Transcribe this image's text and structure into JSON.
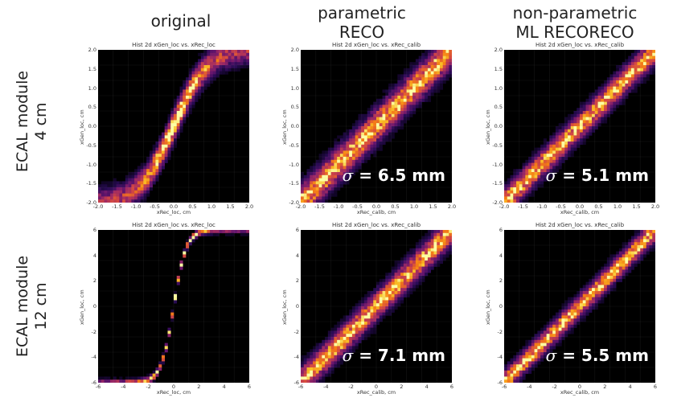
{
  "headers": {
    "col1": "original",
    "col2_line1": "parametric",
    "col2_line2": "RECO",
    "col3_line1": "non-parametric",
    "col3_line2": "ML RECORECO"
  },
  "rows": [
    {
      "line1": "ECAL module",
      "line2": "4 cm"
    },
    {
      "line1": "ECAL module",
      "line2": "12 cm"
    }
  ],
  "chart_data": [
    {
      "type": "heatmap",
      "title": "Hist 2d xGen_loc vs. xRec_loc",
      "xlabel": "xRec_loc, cm",
      "ylabel": "xGen_loc, cm",
      "xlim": [
        -2,
        2
      ],
      "ylim": [
        -2,
        2
      ],
      "xticks": [
        "-2.0",
        "-1.5",
        "-1.0",
        "-0.5",
        "0.0",
        "0.5",
        "1.0",
        "1.5",
        "2.0"
      ],
      "yticks": [
        "2.0",
        "1.5",
        "1.0",
        "0.5",
        "0.0",
        "-0.5",
        "-1.0",
        "-1.5",
        "-2.0"
      ],
      "shape": "s-curve",
      "sharpness": 2.2,
      "spread": 0.22,
      "annotation": ""
    },
    {
      "type": "heatmap",
      "title": "Hist 2d xGen_loc vs. xRec_calib",
      "xlabel": "xRec_calib, cm",
      "ylabel": "xGen_loc, cm",
      "xlim": [
        -2,
        2
      ],
      "ylim": [
        -2,
        2
      ],
      "xticks": [
        "-2.0",
        "-1.5",
        "-1.0",
        "-0.5",
        "0.0",
        "0.5",
        "1.0",
        "1.5",
        "2.0"
      ],
      "yticks": [
        "2.0",
        "1.5",
        "1.0",
        "0.5",
        "0.0",
        "-0.5",
        "-1.0",
        "-1.5",
        "-2.0"
      ],
      "shape": "diagonal",
      "sharpness": 1,
      "spread": 0.28,
      "annotation": "= 6.5 mm"
    },
    {
      "type": "heatmap",
      "title": "Hist 2d xGen_loc vs. xRec_calib",
      "xlabel": "xRec_calib, cm",
      "ylabel": "xGen_loc, cm",
      "xlim": [
        -2,
        2
      ],
      "ylim": [
        -2,
        2
      ],
      "xticks": [
        "-2.0",
        "-1.5",
        "-1.0",
        "-0.5",
        "0.0",
        "0.5",
        "1.0",
        "1.5",
        "2.0"
      ],
      "yticks": [
        "2.0",
        "1.5",
        "1.0",
        "0.5",
        "0.0",
        "-0.5",
        "-1.0",
        "-1.5",
        "-2.0"
      ],
      "shape": "diagonal",
      "sharpness": 1,
      "spread": 0.22,
      "annotation": "= 5.1 mm"
    },
    {
      "type": "heatmap",
      "title": "Hist 2d xGen_loc vs. xRec_loc",
      "xlabel": "xRec_loc, cm",
      "ylabel": "xGen_loc, cm",
      "xlim": [
        -6,
        6
      ],
      "ylim": [
        -6,
        6
      ],
      "xticks": [
        "-6",
        "-4",
        "-2",
        "0",
        "2",
        "4",
        "6"
      ],
      "yticks": [
        "6",
        "4",
        "2",
        "0",
        "-2",
        "-4",
        "-6"
      ],
      "shape": "s-curve",
      "sharpness": 6,
      "spread": 0.16,
      "annotation": ""
    },
    {
      "type": "heatmap",
      "title": "Hist 2d xGen_loc vs. xRec_calib",
      "xlabel": "xRec_calib, cm",
      "ylabel": "xGen_loc, cm",
      "xlim": [
        -6,
        6
      ],
      "ylim": [
        -6,
        6
      ],
      "xticks": [
        "-6",
        "-4",
        "-2",
        "0",
        "2",
        "4",
        "6"
      ],
      "yticks": [
        "6",
        "4",
        "2",
        "0",
        "-2",
        "-4",
        "-6"
      ],
      "shape": "diagonal",
      "sharpness": 1,
      "spread": 0.7,
      "annotation": "= 7.1 mm"
    },
    {
      "type": "heatmap",
      "title": "Hist 2d xGen_loc vs. xRec_calib",
      "xlabel": "xRec_calib, cm",
      "ylabel": "xGen_loc, cm",
      "xlim": [
        -6,
        6
      ],
      "ylim": [
        -6,
        6
      ],
      "xticks": [
        "-6",
        "-4",
        "-2",
        "0",
        "2",
        "4",
        "6"
      ],
      "yticks": [
        "6",
        "4",
        "2",
        "0",
        "-2",
        "-4",
        "-6"
      ],
      "shape": "diagonal",
      "sharpness": 1,
      "spread": 0.55,
      "annotation": "= 5.5 mm"
    }
  ],
  "sigma_symbol": "σ"
}
